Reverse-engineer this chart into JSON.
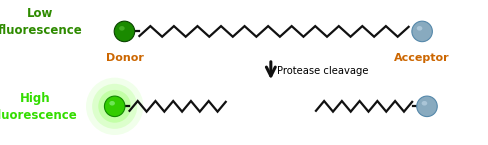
{
  "bg_color": "#ffffff",
  "low_fluor_text": "Low\nfluorescence",
  "high_fluor_text": "High\nfluorescence",
  "donor_text": "Donor",
  "acceptor_text": "Acceptor",
  "protease_text": "Protease cleavage",
  "label_color_green_dark": "#2e8b00",
  "label_color_green_bright": "#33dd00",
  "label_color_orange": "#cc6600",
  "donor_top_color": "#1a8a00",
  "donor_bot_color": "#33cc00",
  "acceptor_color": "#88aabf",
  "zigzag_color": "#111111",
  "arrow_color": "#111111",
  "figsize": [
    4.88,
    1.45
  ],
  "dpi": 100,
  "xlim": [
    0,
    10
  ],
  "ylim": [
    0,
    3
  ],
  "top_y": 2.35,
  "bot_y": 0.8,
  "donor_top_x": 2.55,
  "donor_bot_x": 2.35,
  "acceptor_top_x": 8.65,
  "acceptor_bot_x": 8.75,
  "ball_r": 0.21,
  "zigzag_amp": 0.22,
  "lw": 1.6
}
